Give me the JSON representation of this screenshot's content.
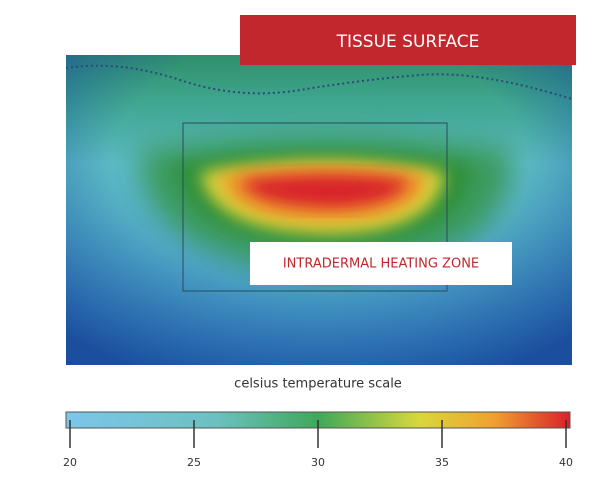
{
  "labels": {
    "surface": "TISSUE SURFACE",
    "zone": "INTRADERMAL HEATING ZONE"
  },
  "scale": {
    "title": "celsius temperature scale",
    "range": [
      20,
      40
    ],
    "ticks": [
      20,
      25,
      30,
      35,
      40
    ]
  }
}
